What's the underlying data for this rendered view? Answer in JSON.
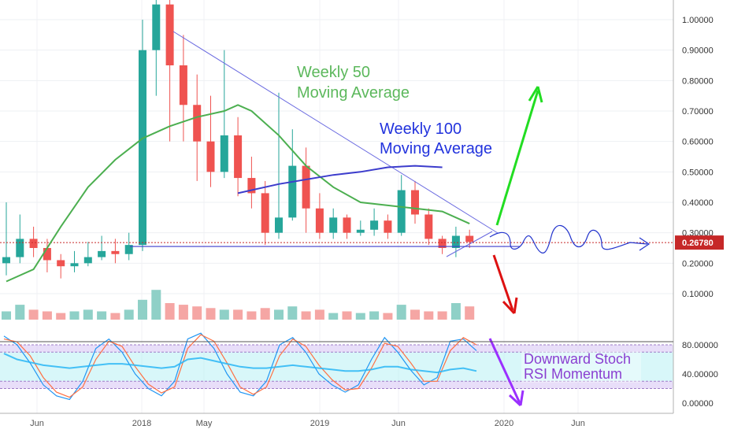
{
  "chart_data": [
    {
      "type": "candlestick",
      "panel": "price",
      "y_ticks": [
        "1.00000",
        "0.90000",
        "0.80000",
        "0.70000",
        "0.60000",
        "0.50000",
        "0.40000",
        "0.30000",
        "0.20000",
        "0.10000"
      ],
      "ylim": [
        0.0,
        1.05
      ],
      "last_price_label": "0.26780",
      "last_price": 0.2678,
      "x_ticks": [
        "Jun",
        "2018",
        "May",
        "2019",
        "Jun",
        "2020",
        "Jun"
      ],
      "support_level": 0.255,
      "series": [
        {
          "name": "Weekly 50 Moving Average",
          "color": "#4caf50",
          "points": [
            [
              0,
              0.14
            ],
            [
              2,
              0.18
            ],
            [
              4,
              0.32
            ],
            [
              6,
              0.45
            ],
            [
              8,
              0.54
            ],
            [
              10,
              0.61
            ],
            [
              12,
              0.65
            ],
            [
              14,
              0.68
            ],
            [
              16,
              0.7
            ],
            [
              17,
              0.72
            ],
            [
              18,
              0.7
            ],
            [
              20,
              0.62
            ],
            [
              22,
              0.52
            ],
            [
              24,
              0.45
            ],
            [
              26,
              0.4
            ],
            [
              28,
              0.39
            ],
            [
              30,
              0.38
            ],
            [
              32,
              0.37
            ],
            [
              34,
              0.33
            ]
          ]
        },
        {
          "name": "Weekly 100 Moving Average",
          "color": "#3c3ccc",
          "points": [
            [
              17,
              0.43
            ],
            [
              20,
              0.46
            ],
            [
              24,
              0.49
            ],
            [
              26,
              0.5
            ],
            [
              28,
              0.515
            ],
            [
              30,
              0.52
            ],
            [
              32,
              0.515
            ]
          ]
        }
      ],
      "annotations": {
        "ma50_label": [
          "Weekly 50",
          "Moving Average"
        ],
        "ma100_label": [
          "Weekly 100",
          "Moving Average"
        ]
      },
      "candles": [
        {
          "c": 0.22,
          "o": 0.2,
          "h": 0.4,
          "l": 0.16
        },
        {
          "c": 0.28,
          "o": 0.22,
          "h": 0.36,
          "l": 0.2
        },
        {
          "c": 0.25,
          "o": 0.28,
          "h": 0.32,
          "l": 0.22
        },
        {
          "c": 0.21,
          "o": 0.25,
          "h": 0.28,
          "l": 0.17
        },
        {
          "c": 0.19,
          "o": 0.21,
          "h": 0.23,
          "l": 0.15
        },
        {
          "c": 0.2,
          "o": 0.19,
          "h": 0.24,
          "l": 0.17
        },
        {
          "c": 0.22,
          "o": 0.2,
          "h": 0.27,
          "l": 0.19
        },
        {
          "c": 0.24,
          "o": 0.22,
          "h": 0.29,
          "l": 0.21
        },
        {
          "c": 0.23,
          "o": 0.24,
          "h": 0.28,
          "l": 0.2
        },
        {
          "c": 0.26,
          "o": 0.23,
          "h": 0.3,
          "l": 0.21
        },
        {
          "c": 0.9,
          "o": 0.26,
          "h": 1.0,
          "l": 0.24
        },
        {
          "c": 1.05,
          "o": 0.9,
          "h": 1.1,
          "l": 0.75
        },
        {
          "c": 0.85,
          "o": 1.05,
          "h": 1.1,
          "l": 0.6
        },
        {
          "c": 0.72,
          "o": 0.85,
          "h": 0.95,
          "l": 0.6
        },
        {
          "c": 0.6,
          "o": 0.72,
          "h": 0.82,
          "l": 0.47
        },
        {
          "c": 0.5,
          "o": 0.6,
          "h": 0.75,
          "l": 0.45
        },
        {
          "c": 0.62,
          "o": 0.5,
          "h": 0.9,
          "l": 0.48
        },
        {
          "c": 0.48,
          "o": 0.62,
          "h": 0.68,
          "l": 0.42
        },
        {
          "c": 0.43,
          "o": 0.48,
          "h": 0.55,
          "l": 0.38
        },
        {
          "c": 0.3,
          "o": 0.43,
          "h": 0.47,
          "l": 0.26
        },
        {
          "c": 0.35,
          "o": 0.3,
          "h": 0.76,
          "l": 0.28
        },
        {
          "c": 0.52,
          "o": 0.35,
          "h": 0.64,
          "l": 0.34
        },
        {
          "c": 0.38,
          "o": 0.52,
          "h": 0.58,
          "l": 0.3
        },
        {
          "c": 0.3,
          "o": 0.38,
          "h": 0.43,
          "l": 0.28
        },
        {
          "c": 0.35,
          "o": 0.3,
          "h": 0.38,
          "l": 0.28
        },
        {
          "c": 0.3,
          "o": 0.35,
          "h": 0.36,
          "l": 0.28
        },
        {
          "c": 0.31,
          "o": 0.3,
          "h": 0.34,
          "l": 0.29
        },
        {
          "c": 0.34,
          "o": 0.31,
          "h": 0.38,
          "l": 0.29
        },
        {
          "c": 0.3,
          "o": 0.34,
          "h": 0.36,
          "l": 0.28
        },
        {
          "c": 0.44,
          "o": 0.3,
          "h": 0.49,
          "l": 0.29
        },
        {
          "c": 0.36,
          "o": 0.44,
          "h": 0.47,
          "l": 0.33
        },
        {
          "c": 0.28,
          "o": 0.36,
          "h": 0.38,
          "l": 0.26
        },
        {
          "c": 0.25,
          "o": 0.28,
          "h": 0.29,
          "l": 0.23
        },
        {
          "c": 0.29,
          "o": 0.25,
          "h": 0.32,
          "l": 0.22
        },
        {
          "c": 0.27,
          "o": 0.29,
          "h": 0.31,
          "l": 0.25
        }
      ],
      "volume": [
        0.05,
        0.09,
        0.06,
        0.05,
        0.04,
        0.05,
        0.06,
        0.05,
        0.04,
        0.06,
        0.12,
        0.18,
        0.1,
        0.09,
        0.08,
        0.07,
        0.06,
        0.06,
        0.05,
        0.07,
        0.06,
        0.08,
        0.05,
        0.06,
        0.04,
        0.05,
        0.04,
        0.05,
        0.04,
        0.09,
        0.06,
        0.05,
        0.05,
        0.1,
        0.08
      ]
    },
    {
      "type": "line",
      "panel": "stoch_rsi",
      "y_ticks": [
        "80.00000",
        "40.00000",
        "0.00000"
      ],
      "ylim": [
        -5,
        105
      ],
      "bands": {
        "upper": [
          70,
          80
        ],
        "lower": [
          20,
          30
        ]
      },
      "annotation": [
        "Downward Stoch",
        "RSI Momentum"
      ],
      "series": [
        {
          "name": "",
          "color": "#2196f3",
          "values": [
            92,
            80,
            55,
            25,
            10,
            5,
            30,
            75,
            88,
            70,
            40,
            20,
            10,
            30,
            88,
            96,
            75,
            40,
            15,
            10,
            30,
            80,
            90,
            70,
            40,
            25,
            15,
            25,
            60,
            90,
            70,
            45,
            25,
            35,
            85,
            88,
            72
          ]
        },
        {
          "name": "",
          "color": "#ff7043",
          "values": [
            88,
            84,
            65,
            35,
            15,
            8,
            22,
            60,
            85,
            78,
            50,
            26,
            14,
            22,
            75,
            94,
            85,
            55,
            22,
            12,
            22,
            65,
            88,
            78,
            52,
            32,
            18,
            20,
            48,
            82,
            78,
            55,
            30,
            30,
            72,
            90,
            80
          ]
        },
        {
          "name": "",
          "color": "#29b6f6",
          "values": [
            68,
            60,
            56,
            52,
            50,
            48,
            50,
            52,
            54,
            54,
            52,
            50,
            48,
            50,
            60,
            62,
            58,
            54,
            50,
            48,
            48,
            50,
            52,
            50,
            48,
            46,
            44,
            44,
            46,
            50,
            50,
            46,
            44,
            42,
            46,
            48,
            44
          ]
        }
      ]
    }
  ],
  "colors": {
    "up": "#26a69a",
    "down": "#ef5350",
    "volume_up": "#8fd0c7",
    "volume_down": "#f5a6a4",
    "trend_line": "#6a6ae0",
    "support_line": "#3c3ccc",
    "price_line": "#c62828",
    "arrow_up": "#22dd22",
    "arrow_down": "#dd1111",
    "projection": "#2233cc",
    "stoch_arrow": "#9b30ff",
    "band_fill": "#b8f0f4",
    "band_edge": "#c9b4f0"
  }
}
